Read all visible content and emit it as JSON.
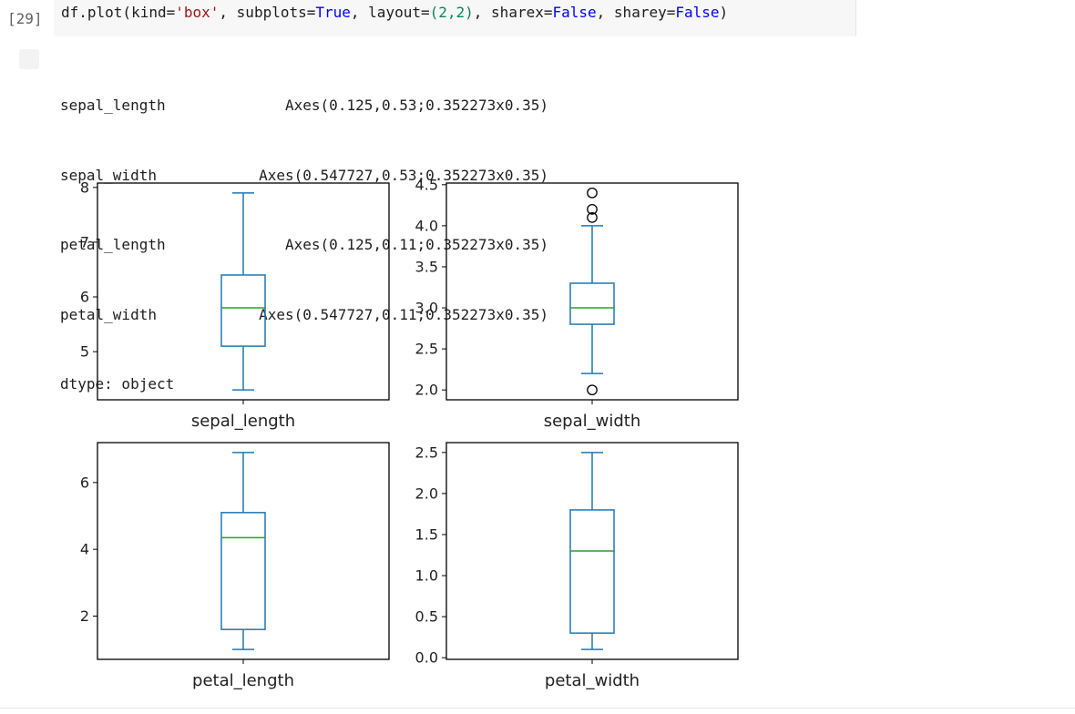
{
  "cell": {
    "execution_count": "[29]",
    "code": {
      "p1": "df.plot(kind=",
      "s1": "'box'",
      "p2": ", subplots=",
      "b1": "True",
      "p3": ", layout=",
      "n1": "(2,2)",
      "p4": ", sharex=",
      "b2": "False",
      "p5": ", sharey=",
      "b3": "False",
      "p6": ")"
    }
  },
  "output": {
    "rows": [
      {
        "key": "sepal_length",
        "value": "Axes(0.125,0.53;0.352273x0.35)"
      },
      {
        "key": "sepal_width",
        "value": "Axes(0.547727,0.53;0.352273x0.35)"
      },
      {
        "key": "petal_length",
        "value": "Axes(0.125,0.11;0.352273x0.35)"
      },
      {
        "key": "petal_width",
        "value": "Axes(0.547727,0.11;0.352273x0.35)"
      }
    ],
    "dtype": "dtype: object"
  },
  "colors": {
    "box": "#1f77b4",
    "median": "#2ca02c",
    "frame": "#000000",
    "outlier": "#000000"
  },
  "chart_data": [
    {
      "type": "box",
      "category": "sepal_length",
      "ylim": [
        4.12,
        8.08
      ],
      "yticks": [
        5,
        6,
        7,
        8
      ],
      "stats": {
        "whislo": 4.3,
        "q1": 5.1,
        "med": 5.8,
        "q3": 6.4,
        "whishi": 7.9
      },
      "fliers": []
    },
    {
      "type": "box",
      "category": "sepal_width",
      "ylim": [
        1.88,
        4.52
      ],
      "yticks": [
        "2.0",
        "2.5",
        "3.0",
        "3.5",
        "4.0",
        "4.5"
      ],
      "stats": {
        "whislo": 2.2,
        "q1": 2.8,
        "med": 3.0,
        "q3": 3.3,
        "whishi": 4.0
      },
      "fliers": [
        2.0,
        4.1,
        4.2,
        4.4
      ]
    },
    {
      "type": "box",
      "category": "petal_length",
      "ylim": [
        0.705,
        7.195
      ],
      "yticks": [
        2,
        4,
        6
      ],
      "stats": {
        "whislo": 1.0,
        "q1": 1.6,
        "med": 4.35,
        "q3": 5.1,
        "whishi": 6.9
      },
      "fliers": []
    },
    {
      "type": "box",
      "category": "petal_width",
      "ylim": [
        -0.02,
        2.62
      ],
      "yticks": [
        "0.0",
        "0.5",
        "1.0",
        "1.5",
        "2.0",
        "2.5"
      ],
      "stats": {
        "whislo": 0.1,
        "q1": 0.3,
        "med": 1.3,
        "q3": 1.8,
        "whishi": 2.5
      },
      "fliers": []
    }
  ]
}
